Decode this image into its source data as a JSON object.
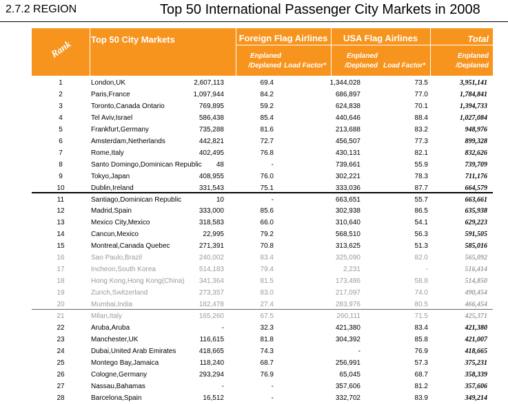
{
  "section": "2.7.2 REGION",
  "title": "Top 50 International Passenger City Markets in 2008",
  "header": {
    "rank": "Rank",
    "city": "Top 50 City Markets",
    "foreign": "Foreign Flag Airlines",
    "usa": "USA Flag Airlines",
    "total": "Total",
    "enplaned_1": "Enplaned",
    "enplaned_2": "/Deplaned",
    "load_factor": "Load Factor*"
  },
  "colors": {
    "header_bg": "#F7941D",
    "header_text": "#FFFFFF",
    "dim_text": "#9A9A9A"
  },
  "rows": [
    {
      "rank": "1",
      "city": "London,UK",
      "fe": "2,607,113",
      "fl": "69.4",
      "ue": "1,344,028",
      "ul": "73.5",
      "total": "3,951,141",
      "dim": false
    },
    {
      "rank": "2",
      "city": "Paris,France",
      "fe": "1,097,944",
      "fl": "84.2",
      "ue": "686,897",
      "ul": "77.0",
      "total": "1,784,841",
      "dim": false
    },
    {
      "rank": "3",
      "city": "Toronto,Canada Ontario",
      "fe": "769,895",
      "fl": "59.2",
      "ue": "624,838",
      "ul": "70.1",
      "total": "1,394,733",
      "dim": false
    },
    {
      "rank": "4",
      "city": "Tel Aviv,Israel",
      "fe": "586,438",
      "fl": "85.4",
      "ue": "440,646",
      "ul": "88.4",
      "total": "1,027,084",
      "dim": false
    },
    {
      "rank": "5",
      "city": "Frankfurt,Germany",
      "fe": "735,288",
      "fl": "81.6",
      "ue": "213,688",
      "ul": "83.2",
      "total": "948,976",
      "dim": false
    },
    {
      "rank": "6",
      "city": "Amsterdam,Netherlands",
      "fe": "442,821",
      "fl": "72.7",
      "ue": "456,507",
      "ul": "77.3",
      "total": "899,328",
      "dim": false
    },
    {
      "rank": "7",
      "city": "Rome,Italy",
      "fe": "402,495",
      "fl": "76.8",
      "ue": "430,131",
      "ul": "82.1",
      "total": "832,626",
      "dim": false
    },
    {
      "rank": "8",
      "city": "Santo Domingo,Dominican Republic",
      "fe": "48",
      "fl": "-",
      "ue": "739,661",
      "ul": "55.9",
      "total": "739,709",
      "dim": false
    },
    {
      "rank": "9",
      "city": "Tokyo,Japan",
      "fe": "408,955",
      "fl": "76.0",
      "ue": "302,221",
      "ul": "78.3",
      "total": "711,176",
      "dim": false
    },
    {
      "rank": "10",
      "city": "Dublin,Ireland",
      "fe": "331,543",
      "fl": "75.1",
      "ue": "333,036",
      "ul": "87.7",
      "total": "664,579",
      "dim": false
    },
    {
      "rank": "11",
      "city": "Santiago,Dominican Republic",
      "fe": "10",
      "fl": "-",
      "ue": "663,651",
      "ul": "55.7",
      "total": "663,661",
      "dim": false
    },
    {
      "rank": "12",
      "city": "Madrid,Spain",
      "fe": "333,000",
      "fl": "85.6",
      "ue": "302,938",
      "ul": "86.5",
      "total": "635,938",
      "dim": false
    },
    {
      "rank": "13",
      "city": "Mexico City,Mexico",
      "fe": "318,583",
      "fl": "66.0",
      "ue": "310,640",
      "ul": "54.1",
      "total": "629,223",
      "dim": false
    },
    {
      "rank": "14",
      "city": "Cancun,Mexico",
      "fe": "22,995",
      "fl": "79.2",
      "ue": "568,510",
      "ul": "56.3",
      "total": "591,505",
      "dim": false
    },
    {
      "rank": "15",
      "city": "Montreal,Canada Quebec",
      "fe": "271,391",
      "fl": "70.8",
      "ue": "313,625",
      "ul": "51.3",
      "total": "585,016",
      "dim": false
    },
    {
      "rank": "16",
      "city": "Sao Paulo,Brazil",
      "fe": "240,002",
      "fl": "83.4",
      "ue": "325,090",
      "ul": "82.0",
      "total": "565,092",
      "dim": true
    },
    {
      "rank": "17",
      "city": "Incheon,South Korea",
      "fe": "514,183",
      "fl": "79.4",
      "ue": "2,231",
      "ul": "-",
      "total": "516,414",
      "dim": true
    },
    {
      "rank": "18",
      "city": "Hong Kong,Hong Kong(China)",
      "fe": "341,364",
      "fl": "81.5",
      "ue": "173,486",
      "ul": "58.8",
      "total": "514,850",
      "dim": true
    },
    {
      "rank": "19",
      "city": "Zurich,Switzerland",
      "fe": "273,357",
      "fl": "83.0",
      "ue": "217,097",
      "ul": "74.0",
      "total": "490,454",
      "dim": true
    },
    {
      "rank": "20",
      "city": "Mumbai,India",
      "fe": "182,478",
      "fl": "27.4",
      "ue": "283,976",
      "ul": "80.5",
      "total": "466,454",
      "dim": true
    },
    {
      "rank": "21",
      "city": "Milan,Italy",
      "fe": "165,260",
      "fl": "67.5",
      "ue": "260,111",
      "ul": "71.5",
      "total": "425,371",
      "dim": true
    },
    {
      "rank": "22",
      "city": "Aruba,Aruba",
      "fe": "-",
      "fl": "32.3",
      "ue": "421,380",
      "ul": "83.4",
      "total": "421,380",
      "dim": false
    },
    {
      "rank": "23",
      "city": "Manchester,UK",
      "fe": "116,615",
      "fl": "81.8",
      "ue": "304,392",
      "ul": "85.8",
      "total": "421,007",
      "dim": false
    },
    {
      "rank": "24",
      "city": "Dubai,United Arab Emirates",
      "fe": "418,665",
      "fl": "74.3",
      "ue": "-",
      "ul": "76.9",
      "total": "418,665",
      "dim": false
    },
    {
      "rank": "25",
      "city": "Montego Bay,Jamaica",
      "fe": "118,240",
      "fl": "68.7",
      "ue": "256,991",
      "ul": "57.3",
      "total": "375,231",
      "dim": false
    },
    {
      "rank": "26",
      "city": "Cologne,Germany",
      "fe": "293,294",
      "fl": "76.9",
      "ue": "65,045",
      "ul": "68.7",
      "total": "358,339",
      "dim": false
    },
    {
      "rank": "27",
      "city": "Nassau,Bahamas",
      "fe": "-",
      "fl": "-",
      "ue": "357,606",
      "ul": "81.2",
      "total": "357,606",
      "dim": false
    },
    {
      "rank": "28",
      "city": "Barcelona,Spain",
      "fe": "16,512",
      "fl": "-",
      "ue": "332,702",
      "ul": "83.9",
      "total": "349,214",
      "dim": false
    }
  ]
}
